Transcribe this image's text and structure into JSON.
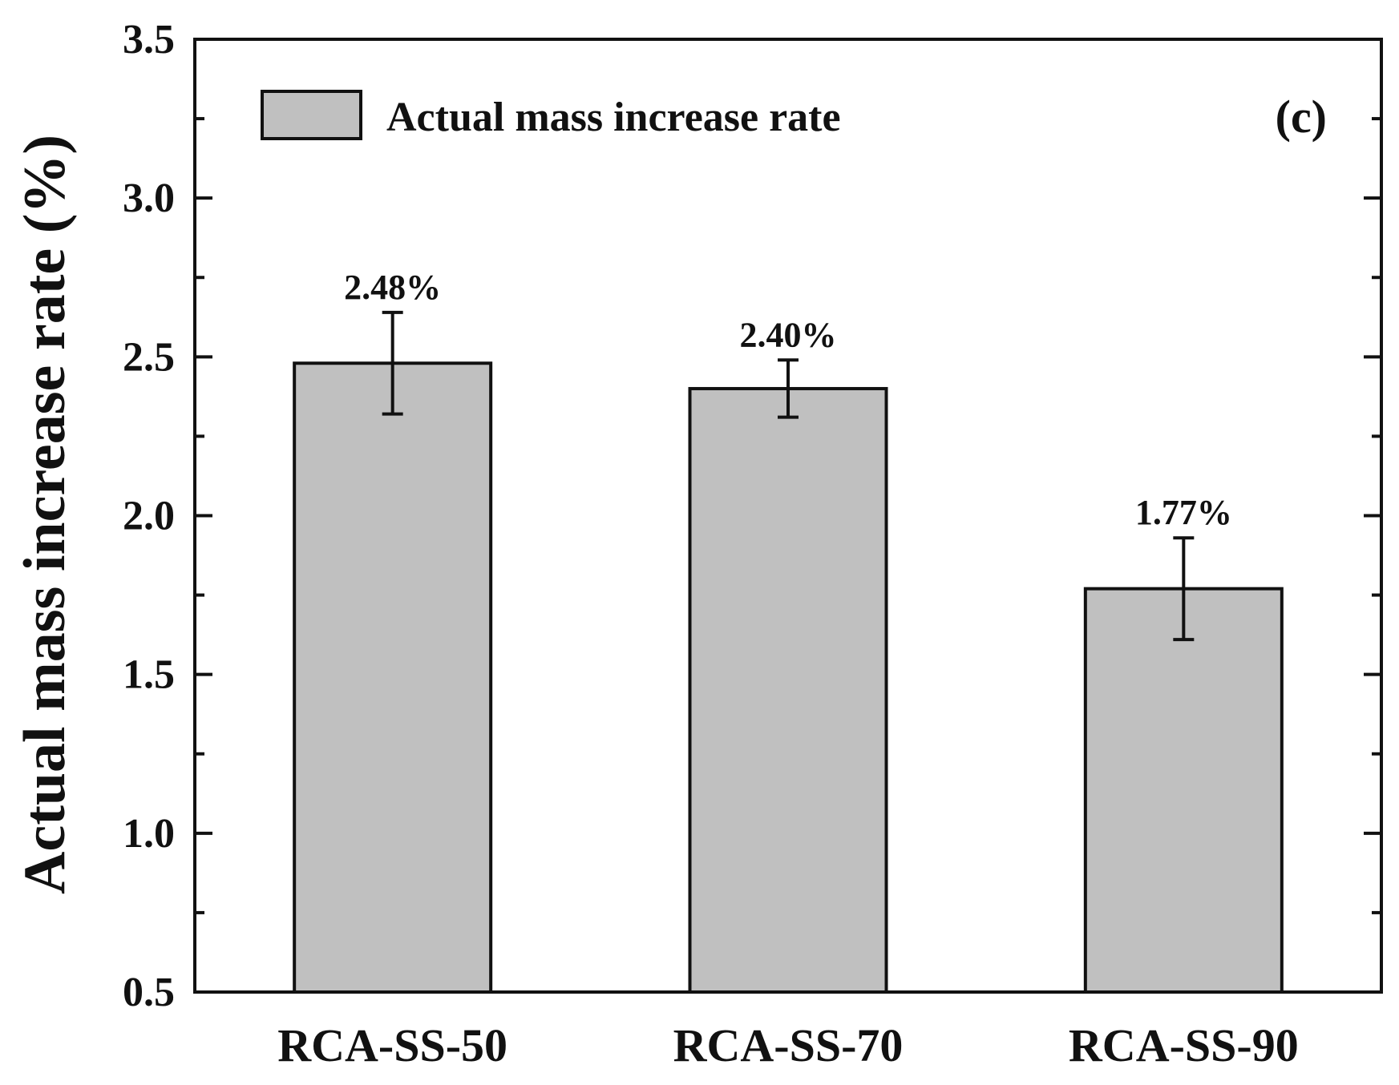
{
  "chart_data": {
    "type": "bar",
    "categories": [
      "RCA-SS-50",
      "RCA-SS-70",
      "RCA-SS-90"
    ],
    "series": [
      {
        "name": "Actual mass increase rate",
        "values": [
          2.48,
          2.4,
          1.77
        ],
        "error_upper": [
          2.64,
          2.49,
          1.93
        ],
        "error_lower": [
          2.32,
          2.31,
          1.61
        ],
        "data_labels": [
          "2.48%",
          "2.40%",
          "1.77%"
        ]
      }
    ],
    "xlabel": "",
    "ylabel": "Actual mass increase rate (%)",
    "ylim": [
      0.5,
      3.5
    ],
    "yticks": [
      0.5,
      1.0,
      1.5,
      2.0,
      2.5,
      3.0,
      3.5
    ],
    "ytick_labels": [
      "0.5",
      "1.0",
      "1.5",
      "2.0",
      "2.5",
      "3.0",
      "3.5"
    ],
    "y_minor_step": 0.25,
    "grid": false,
    "legend": {
      "position": "top-left",
      "entries": [
        "Actual mass increase rate"
      ]
    },
    "panel_label": "(c)",
    "colors": {
      "bar_fill": "#c0c0c0",
      "bar_edge": "#111111",
      "axis": "#111111"
    }
  }
}
